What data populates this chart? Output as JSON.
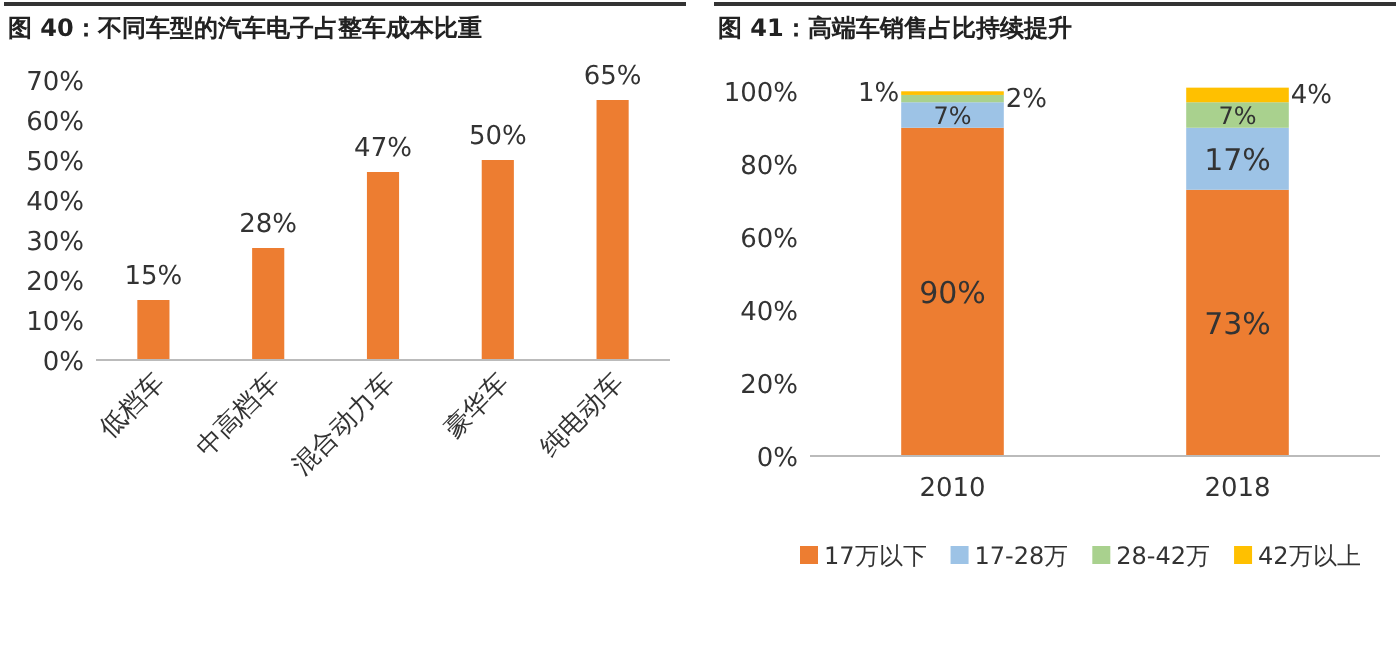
{
  "chart_data": [
    {
      "type": "bar",
      "title": "图 40：不同车型的汽车电子占整车成本比重",
      "categories": [
        "低档车",
        "中高档车",
        "混合动力车",
        "豪华车",
        "纯电动车"
      ],
      "values": [
        15,
        28,
        47,
        50,
        65
      ],
      "value_labels": [
        "15%",
        "28%",
        "47%",
        "50%",
        "65%"
      ],
      "color": "#ed7d31",
      "ylim": [
        0,
        70
      ],
      "yticks": [
        {
          "value": 0,
          "label": "0%"
        },
        {
          "value": 10,
          "label": "10%"
        },
        {
          "value": 20,
          "label": "20%"
        },
        {
          "value": 30,
          "label": "30%"
        },
        {
          "value": 40,
          "label": "40%"
        },
        {
          "value": 50,
          "label": "50%"
        },
        {
          "value": 60,
          "label": "60%"
        },
        {
          "value": 70,
          "label": "70%"
        }
      ],
      "grid": false,
      "legend": false
    },
    {
      "type": "bar",
      "title": "图 41：高端车销售占比持续提升",
      "stacked": true,
      "categories": [
        "2010",
        "2018"
      ],
      "series": [
        {
          "name": "17万以下",
          "color": "#ed7d31",
          "values": [
            90,
            73
          ],
          "value_labels": [
            "90%",
            "73%"
          ]
        },
        {
          "name": "17-28万",
          "color": "#9dc3e6",
          "values": [
            7,
            17
          ],
          "value_labels": [
            "7%",
            "17%"
          ]
        },
        {
          "name": "28-42万",
          "color": "#a9d18e",
          "values": [
            2,
            7
          ],
          "value_labels": [
            "2%",
            "7%"
          ]
        },
        {
          "name": "42万以上",
          "color": "#ffc000",
          "values": [
            1,
            4
          ],
          "value_labels": [
            "1%",
            "4%"
          ]
        }
      ],
      "yticks": [
        {
          "value": 0,
          "label": "0%"
        },
        {
          "value": 20,
          "label": "20%"
        },
        {
          "value": 40,
          "label": "40%"
        },
        {
          "value": 60,
          "label": "60%"
        },
        {
          "value": 80,
          "label": "80%"
        },
        {
          "value": 100,
          "label": "100%"
        }
      ],
      "ylim": [
        0,
        102
      ],
      "grid": false,
      "legend": "bottom"
    }
  ]
}
